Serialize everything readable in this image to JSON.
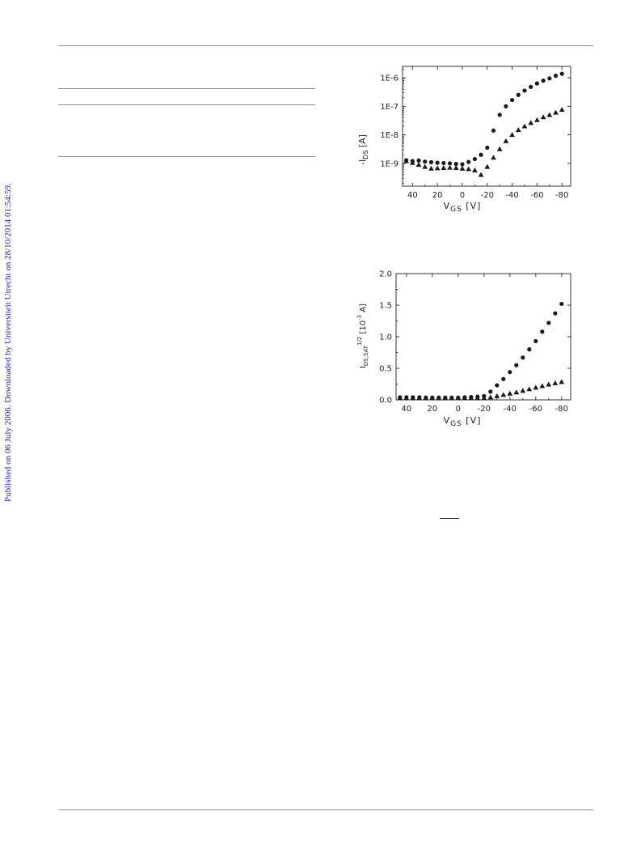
{
  "sidebar": {
    "text": "Published on 06 July 2006. Downloaded by Universiteit Utrecht on 28/10/2014 01:54:59."
  },
  "chart_data": [
    {
      "type": "scatter",
      "title": "",
      "ylabel_main": "-I",
      "ylabel_sub": "DS",
      "ylabel_unit": " [A]",
      "xlabel_main": "V",
      "xlabel_sub": "GS",
      "xlabel_unit": " [V]",
      "y_scale": "log",
      "xlim": [
        48,
        -87
      ],
      "ylim_exp": [
        -9.8,
        -5.6
      ],
      "x_ticks": [
        40,
        20,
        0,
        -20,
        -40,
        -60,
        -80
      ],
      "x_tick_labels": [
        "40",
        "20",
        "0",
        "-20",
        "-40",
        "-60",
        "-80"
      ],
      "y_ticks_exp": [
        -9,
        -8,
        -7,
        -6
      ],
      "y_tick_labels": [
        "1E-9",
        "1E-8",
        "1E-7",
        "1E-6"
      ],
      "grid": false,
      "series": [
        {
          "marker": "circle",
          "x": [
            45,
            40,
            35,
            30,
            25,
            20,
            15,
            10,
            5,
            0,
            -5,
            -10,
            -15,
            -20,
            -25,
            -30,
            -35,
            -40,
            -45,
            -50,
            -55,
            -60,
            -65,
            -70,
            -75,
            -80
          ],
          "y_exp": [
            -8.89,
            -8.92,
            -8.9,
            -8.94,
            -8.96,
            -8.98,
            -8.99,
            -9.0,
            -9.02,
            -9.03,
            -8.95,
            -8.85,
            -8.7,
            -8.45,
            -7.85,
            -7.3,
            -7.0,
            -6.78,
            -6.6,
            -6.45,
            -6.32,
            -6.2,
            -6.1,
            -6.02,
            -5.93,
            -5.86
          ]
        },
        {
          "marker": "triangle",
          "x": [
            45,
            40,
            35,
            30,
            25,
            20,
            15,
            10,
            5,
            0,
            -5,
            -10,
            -15,
            -20,
            -25,
            -30,
            -35,
            -40,
            -45,
            -50,
            -55,
            -60,
            -65,
            -70,
            -75,
            -80
          ],
          "y_exp": [
            -8.92,
            -8.98,
            -9.05,
            -9.12,
            -9.18,
            -9.17,
            -9.16,
            -9.15,
            -9.16,
            -9.18,
            -9.2,
            -9.24,
            -9.4,
            -9.12,
            -8.8,
            -8.5,
            -8.22,
            -8.0,
            -7.83,
            -7.7,
            -7.58,
            -7.48,
            -7.38,
            -7.3,
            -7.22,
            -7.12
          ]
        }
      ]
    },
    {
      "type": "scatter",
      "title": "",
      "ylabel_main": "I",
      "ylabel_sub": "DS,SAT",
      "ylabel_sup": "1/2",
      "ylabel_mid": " [10",
      "ylabel_sup2": "-3",
      "ylabel_end": " A]",
      "xlabel_main": "V",
      "xlabel_sub": "GS",
      "xlabel_unit": " [V]",
      "y_scale": "linear",
      "xlim": [
        48,
        -87
      ],
      "ylim": [
        0,
        2.0
      ],
      "x_ticks": [
        40,
        20,
        0,
        -20,
        -40,
        -60,
        -80
      ],
      "x_tick_labels": [
        "40",
        "20",
        "0",
        "-20",
        "-40",
        "-60",
        "-80"
      ],
      "y_ticks": [
        0,
        0.5,
        1.0,
        1.5,
        2.0
      ],
      "y_tick_labels": [
        "0.0",
        "0.5",
        "1.0",
        "1.5",
        "2.0"
      ],
      "grid": false,
      "series": [
        {
          "marker": "circle",
          "x": [
            45,
            40,
            35,
            30,
            25,
            20,
            15,
            10,
            5,
            0,
            -5,
            -10,
            -15,
            -20,
            -25,
            -30,
            -35,
            -40,
            -45,
            -50,
            -55,
            -60,
            -65,
            -70,
            -75,
            -80
          ],
          "y": [
            0.04,
            0.04,
            0.04,
            0.04,
            0.035,
            0.035,
            0.035,
            0.035,
            0.035,
            0.035,
            0.04,
            0.045,
            0.05,
            0.06,
            0.13,
            0.23,
            0.33,
            0.44,
            0.55,
            0.67,
            0.8,
            0.93,
            1.08,
            1.22,
            1.37,
            1.52
          ]
        },
        {
          "marker": "triangle",
          "x": [
            45,
            40,
            35,
            30,
            25,
            20,
            15,
            10,
            5,
            0,
            -5,
            -10,
            -15,
            -20,
            -25,
            -30,
            -35,
            -40,
            -45,
            -50,
            -55,
            -60,
            -65,
            -70,
            -75,
            -80
          ],
          "y": [
            0.03,
            0.03,
            0.03,
            0.03,
            0.03,
            0.03,
            0.03,
            0.03,
            0.03,
            0.03,
            0.03,
            0.03,
            0.03,
            0.03,
            0.04,
            0.06,
            0.08,
            0.1,
            0.12,
            0.145,
            0.17,
            0.195,
            0.22,
            0.245,
            0.265,
            0.285
          ]
        }
      ]
    }
  ]
}
